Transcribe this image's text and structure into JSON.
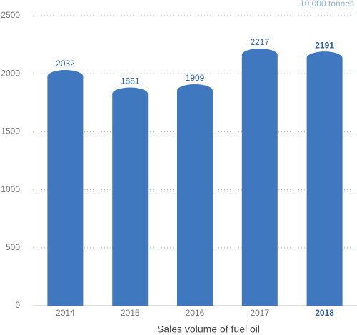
{
  "chart_data": {
    "type": "bar",
    "title": "Sales volume of fuel oil",
    "unit": "10,000 tonnes",
    "categories": [
      "2014",
      "2015",
      "2016",
      "2017",
      "2018"
    ],
    "values": [
      2032,
      1881,
      1909,
      2217,
      2191
    ],
    "color": "#3f78be",
    "highlight": 4,
    "ylim": [
      0,
      2500
    ],
    "yticks": [
      0,
      500,
      1000,
      1500,
      2000,
      2500
    ],
    "grid": true
  }
}
